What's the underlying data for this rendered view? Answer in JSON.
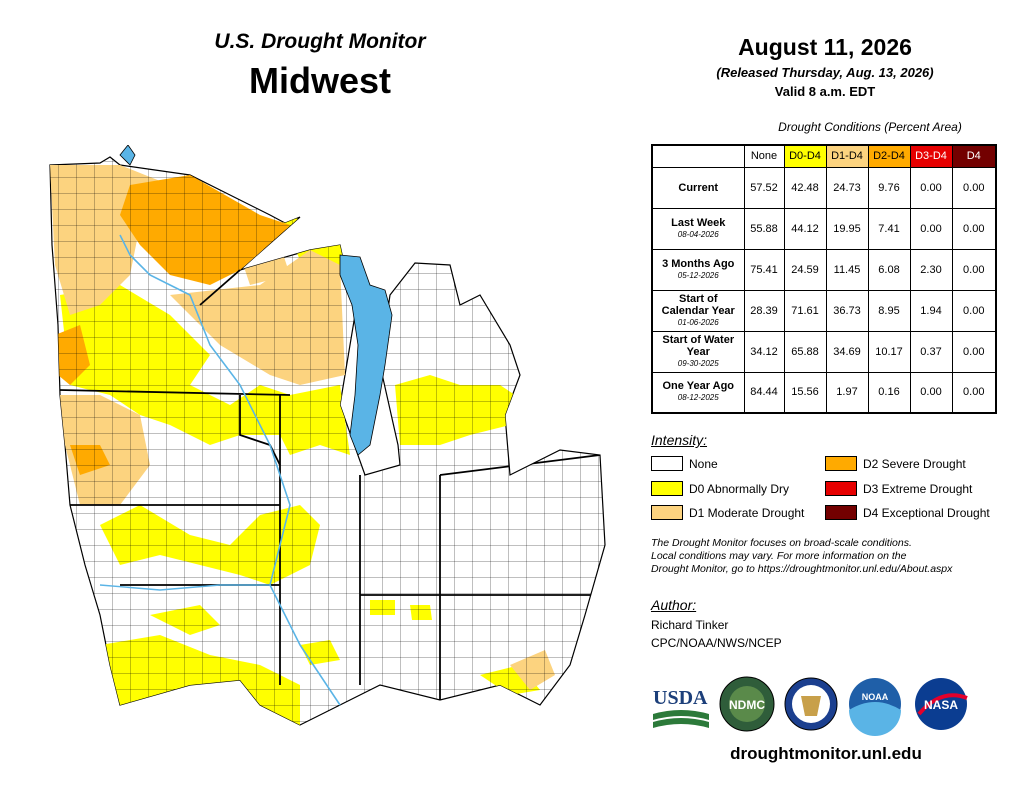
{
  "header": {
    "subtitle": "U.S. Drought Monitor",
    "region": "Midwest",
    "date": "August 11, 2026",
    "released": "(Released Thursday, Aug. 13, 2026)",
    "valid": "Valid 8 a.m. EDT"
  },
  "table": {
    "caption": "Drought Conditions (Percent Area)",
    "columns": [
      "None",
      "D0-D4",
      "D1-D4",
      "D2-D4",
      "D3-D4",
      "D4"
    ],
    "rows": [
      {
        "label": "Current",
        "date": "",
        "values": [
          "57.52",
          "42.48",
          "24.73",
          "9.76",
          "0.00",
          "0.00"
        ]
      },
      {
        "label": "Last Week",
        "date": "08-04-2026",
        "values": [
          "55.88",
          "44.12",
          "19.95",
          "7.41",
          "0.00",
          "0.00"
        ]
      },
      {
        "label": "3 Months Ago",
        "date": "05-12-2026",
        "values": [
          "75.41",
          "24.59",
          "11.45",
          "6.08",
          "2.30",
          "0.00"
        ]
      },
      {
        "label": "Start of Calendar Year",
        "date": "01-06-2026",
        "values": [
          "28.39",
          "71.61",
          "36.73",
          "8.95",
          "1.94",
          "0.00"
        ]
      },
      {
        "label": "Start of Water Year",
        "date": "09-30-2025",
        "values": [
          "34.12",
          "65.88",
          "34.69",
          "10.17",
          "0.37",
          "0.00"
        ]
      },
      {
        "label": "One Year Ago",
        "date": "08-12-2025",
        "values": [
          "84.44",
          "15.56",
          "1.97",
          "0.16",
          "0.00",
          "0.00"
        ]
      }
    ]
  },
  "legend": {
    "title": "Intensity:",
    "items": [
      {
        "label": "None",
        "color": "#ffffff"
      },
      {
        "label": "D0 Abnormally Dry",
        "color": "#ffff00"
      },
      {
        "label": "D1 Moderate Drought",
        "color": "#fcd37f"
      },
      {
        "label": "D2 Severe Drought",
        "color": "#ffaa00"
      },
      {
        "label": "D3 Extreme Drought",
        "color": "#e60000"
      },
      {
        "label": "D4 Exceptional Drought",
        "color": "#730000"
      }
    ]
  },
  "note": {
    "line1": "The Drought Monitor focuses on broad-scale conditions.",
    "line2": "Local conditions may vary. For more information on the",
    "line3": "Drought Monitor, go to https://droughtmonitor.unl.edu/About.aspx"
  },
  "author": {
    "label": "Author:",
    "name": "Richard Tinker",
    "org": "CPC/NOAA/NWS/NCEP"
  },
  "logos": {
    "usda": "USDA",
    "ndmc": "NDMC",
    "noaa": "NOAA",
    "nasa": "NASA"
  },
  "website": "droughtmonitor.unl.edu",
  "colors": {
    "none": "#ffffff",
    "d0": "#ffff00",
    "d1": "#fcd37f",
    "d2": "#ffaa00",
    "d3": "#e60000",
    "d4": "#730000",
    "water": "#5ab4e6"
  }
}
